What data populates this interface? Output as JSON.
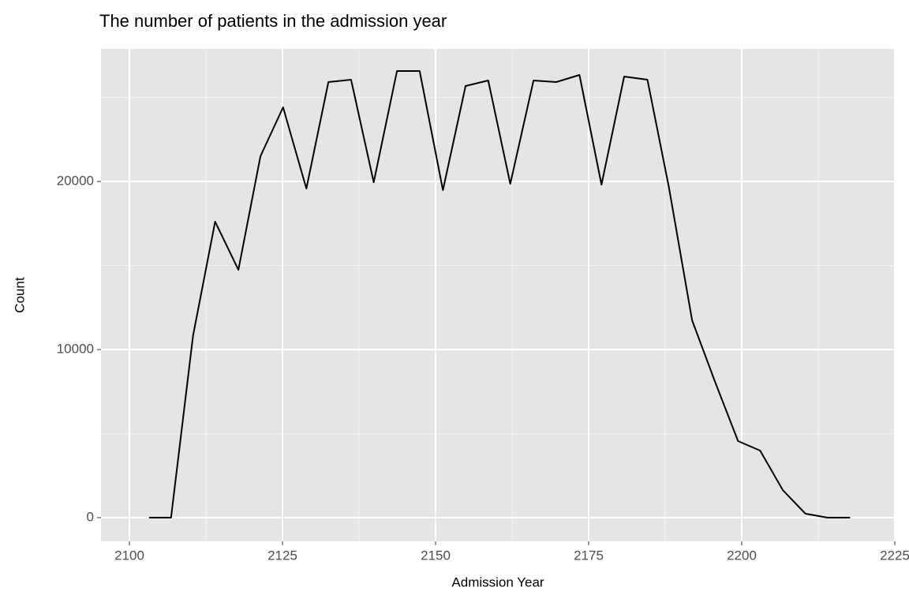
{
  "chart_data": {
    "type": "line",
    "title": "The number of patients in the admission year",
    "x_label": "Admission Year",
    "y_label": "Count",
    "x": [
      2103.2,
      2106.8,
      2110.4,
      2114.0,
      2117.8,
      2121.4,
      2125.1,
      2128.9,
      2132.5,
      2136.2,
      2139.9,
      2143.7,
      2147.4,
      2151.2,
      2154.9,
      2158.6,
      2162.2,
      2166.0,
      2169.7,
      2173.5,
      2177.1,
      2180.8,
      2184.6,
      2188.1,
      2191.9,
      2195.6,
      2199.4,
      2203.0,
      2206.7,
      2210.4,
      2214.0,
      2217.7
    ],
    "values": [
      0,
      0,
      10845,
      17606,
      14742,
      21502,
      24413,
      19577,
      25915,
      26056,
      19953,
      26573,
      26573,
      19484,
      25681,
      26009,
      19859,
      26009,
      25915,
      26338,
      19812,
      26244,
      26056,
      19671,
      11737,
      8122,
      4554,
      3991,
      1643,
      235,
      0,
      0
    ],
    "color": "#000000",
    "xlim": [
      2095.36,
      2225
    ],
    "ylim": [
      -1408,
      27887
    ],
    "xticks": [
      2100,
      2125,
      2150,
      2175,
      2200,
      2225
    ],
    "yticks": [
      0,
      10000,
      20000
    ],
    "grid": true
  }
}
